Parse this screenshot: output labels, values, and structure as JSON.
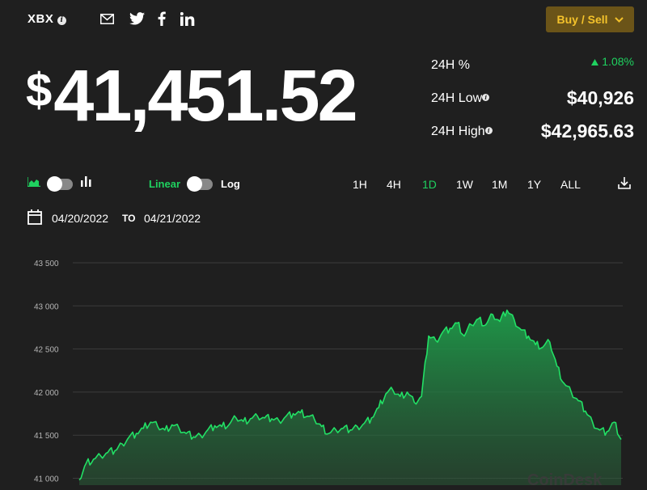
{
  "header": {
    "symbol": "XBX",
    "info_icon_glyph": "i",
    "share_icons": [
      "mail-icon",
      "twitter-icon",
      "facebook-icon",
      "linkedin-icon"
    ],
    "buy_sell_label": "Buy / Sell"
  },
  "price": {
    "currency": "$",
    "value": "41,451.52"
  },
  "stats": {
    "change_label": "24H %",
    "change_value": "1.08%",
    "low_label": "24H Low",
    "low_value": "$40,926",
    "high_label": "24H High",
    "high_value": "$42,965.63"
  },
  "controls": {
    "scale_linear": "Linear",
    "scale_log": "Log",
    "ranges": [
      {
        "label": "1H",
        "active": false
      },
      {
        "label": "4H",
        "active": false
      },
      {
        "label": "1D",
        "active": true
      },
      {
        "label": "1W",
        "active": false
      },
      {
        "label": "1M",
        "active": false
      },
      {
        "label": "1Y",
        "active": false
      },
      {
        "label": "ALL",
        "active": false
      }
    ],
    "date_from": "04/20/2022",
    "date_to_label": "TO",
    "date_to": "04/21/2022"
  },
  "colors": {
    "accent_green": "#1fd15f",
    "button_bg": "#6b5418",
    "button_text": "#f4c22b",
    "background": "#1f1f1f"
  },
  "chart_data": {
    "type": "area",
    "yticks": [
      "43 500",
      "43 000",
      "42 500",
      "42 000",
      "41 500",
      "41 000"
    ],
    "ylim": [
      41000,
      43500
    ],
    "y_tick_values": [
      43500,
      43000,
      42500,
      42000,
      41500,
      41000
    ],
    "values": [
      40980,
      41180,
      41220,
      41260,
      41300,
      41320,
      41400,
      41480,
      41520,
      41580,
      41650,
      41600,
      41560,
      41620,
      41580,
      41520,
      41480,
      41500,
      41560,
      41610,
      41600,
      41620,
      41700,
      41660,
      41690,
      41720,
      41700,
      41690,
      41670,
      41720,
      41750,
      41760,
      41720,
      41680,
      41600,
      41520,
      41560,
      41580,
      41560,
      41600,
      41640,
      41700,
      41820,
      41980,
      42020,
      41950,
      42000,
      41880,
      41950,
      42650,
      42600,
      42700,
      42740,
      42800,
      42650,
      42780,
      42850,
      42780,
      42900,
      42820,
      42950,
      42840,
      42720,
      42650,
      42550,
      42520,
      42580,
      42300,
      42100,
      42000,
      41900,
      41780,
      41650,
      41560,
      41540,
      41650,
      41450
    ],
    "watermark": "CoinDesk"
  }
}
